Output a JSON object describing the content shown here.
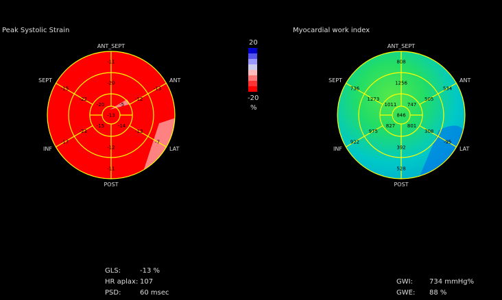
{
  "panels": {
    "strain": {
      "title": "Peak Systolic Strain",
      "labels": {
        "ant_sept": "ANT_SEPT",
        "ant": "ANT",
        "lat": "LAT",
        "post": "POST",
        "inf": "INF",
        "sept": "SEPT"
      },
      "segments": {
        "basal": [
          "-11",
          "-13",
          "-7",
          "-11",
          "-17",
          "-15"
        ],
        "mid": [
          "-20",
          "-12",
          "-13",
          "-12",
          "-23",
          "-22"
        ],
        "apical": [
          "-5",
          "-14",
          "-15",
          "-20"
        ],
        "apex": "-13"
      },
      "color": "#ff0000",
      "line_color": "#ffff00"
    },
    "work": {
      "title": "Myocardial work index",
      "labels": {
        "ant_sept": "ANT_SEPT",
        "ant": "ANT",
        "lat": "LAT",
        "post": "POST",
        "inf": "INF",
        "sept": "SEPT"
      },
      "segments": {
        "basal": [
          "808",
          "534",
          "-95",
          "528",
          "922",
          "736"
        ],
        "mid": [
          "1256",
          "505",
          "308",
          "392",
          "975",
          "1273"
        ],
        "apical": [
          "747",
          "801",
          "827",
          "1011"
        ],
        "apex": "846"
      },
      "color": "#00c8c8",
      "line_color": "#ffff00"
    }
  },
  "colorbar": {
    "max": "20",
    "min": "-20",
    "unit": "%",
    "colors": [
      "#0000cc",
      "#5555ee",
      "#9999ff",
      "#ccccee",
      "#ffbbbb",
      "#ff7777",
      "#ff3333",
      "#ff0000"
    ]
  },
  "stats_left": [
    {
      "key": "GLS:",
      "value": "-13 %"
    },
    {
      "key": "HR aplax:",
      "value": "107"
    },
    {
      "key": "PSD:",
      "value": "60 msec"
    }
  ],
  "stats_right": [
    {
      "key": "GWI:",
      "value": "734 mmHg%"
    },
    {
      "key": "GWE:",
      "value": "88 %"
    }
  ]
}
